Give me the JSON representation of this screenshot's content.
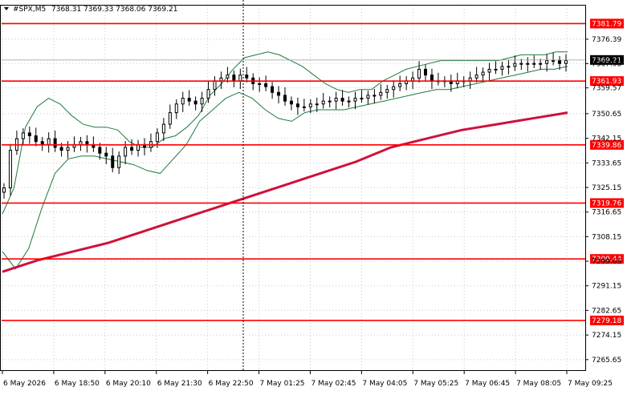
{
  "header": {
    "symbol_tf": "#SPX,M5",
    "ohlc": "7368.31 7369.33 7368.06 7369.21"
  },
  "colors": {
    "background": "#ffffff",
    "candle": "#000000",
    "bands": "#1e7a3a",
    "ma": "#d0103a",
    "level_line": "#ff0000",
    "level_label_bg": "#ff0000",
    "current_label_bg": "#000000",
    "grid": "#c8c8c8"
  },
  "chart_data": {
    "type": "candlestick",
    "title": "#SPX,M5",
    "ylim": [
      7262,
      7388
    ],
    "grid": true,
    "y_ticks": [
      "7376.39",
      "7367.98",
      "7359.57",
      "7350.65",
      "7342.15",
      "7333.65",
      "7325.15",
      "7316.65",
      "7308.15",
      "7299.65",
      "7291.15",
      "7282.65",
      "7274.15",
      "7265.65"
    ],
    "x_ticks": [
      "6 May 2026",
      "6 May 18:50",
      "6 May 20:10",
      "6 May 21:30",
      "6 May 22:50",
      "7 May 01:25",
      "7 May 02:45",
      "7 May 04:05",
      "7 May 05:25",
      "7 May 06:45",
      "7 May 08:05",
      "7 May 09:25"
    ],
    "current_price": "7369.21",
    "levels": [
      {
        "value": 7381.79,
        "label": "7381.79"
      },
      {
        "value": 7361.93,
        "label": "7361.93"
      },
      {
        "value": 7339.86,
        "label": "7339.86"
      },
      {
        "value": 7319.76,
        "label": "7319.76"
      },
      {
        "value": 7300.44,
        "label": "7300.44"
      },
      {
        "value": 7279.18,
        "label": "7279.18"
      }
    ],
    "close_series": [
      7325,
      7338,
      7342,
      7344,
      7343,
      7341,
      7340,
      7342,
      7339,
      7338,
      7339,
      7340,
      7341,
      7340,
      7339,
      7337,
      7336,
      7332,
      7336,
      7339,
      7338,
      7340,
      7339,
      7341,
      7344,
      7347,
      7351,
      7354,
      7356,
      7355,
      7354,
      7356,
      7359,
      7362,
      7363,
      7364,
      7362,
      7364,
      7363,
      7361,
      7361,
      7360,
      7358,
      7357,
      7355,
      7354,
      7353,
      7353,
      7354,
      7354,
      7355,
      7355,
      7356,
      7355,
      7355,
      7356,
      7356,
      7357,
      7357,
      7358,
      7359,
      7360,
      7361,
      7362,
      7363,
      7366,
      7364,
      7362,
      7362,
      7362,
      7361,
      7362,
      7362,
      7363,
      7364,
      7365,
      7366,
      7366,
      7367,
      7367,
      7368,
      7368,
      7368,
      7368,
      7368,
      7369,
      7369,
      7368,
      7369
    ],
    "upper_band": [
      7316,
      7325,
      7346,
      7353,
      7356,
      7354,
      7350,
      7347,
      7346,
      7346,
      7345,
      7341,
      7339,
      7339,
      7342,
      7343,
      7346,
      7350,
      7357,
      7361,
      7366,
      7370,
      7371,
      7372,
      7371,
      7369,
      7367,
      7364,
      7361,
      7359,
      7358,
      7359,
      7359,
      7362,
      7364,
      7366,
      7367,
      7368,
      7369,
      7369,
      7369,
      7369,
      7369,
      7369,
      7370,
      7371,
      7371,
      7371,
      7372,
      7372
    ],
    "lower_band": [
      7303,
      7297,
      7304,
      7318,
      7330,
      7335,
      7336,
      7336,
      7335,
      7334,
      7333,
      7331,
      7330,
      7335,
      7340,
      7348,
      7352,
      7356,
      7358,
      7356,
      7352,
      7349,
      7348,
      7351,
      7352,
      7352,
      7352,
      7353,
      7354,
      7355,
      7356,
      7357,
      7358,
      7359,
      7359,
      7360,
      7361,
      7362,
      7363,
      7364,
      7365,
      7366,
      7366,
      7367
    ],
    "ma_series": [
      7296,
      7300,
      7303,
      7306,
      7310,
      7314,
      7318,
      7322,
      7326,
      7330,
      7334,
      7339,
      7342,
      7345,
      7347,
      7349,
      7351
    ]
  }
}
